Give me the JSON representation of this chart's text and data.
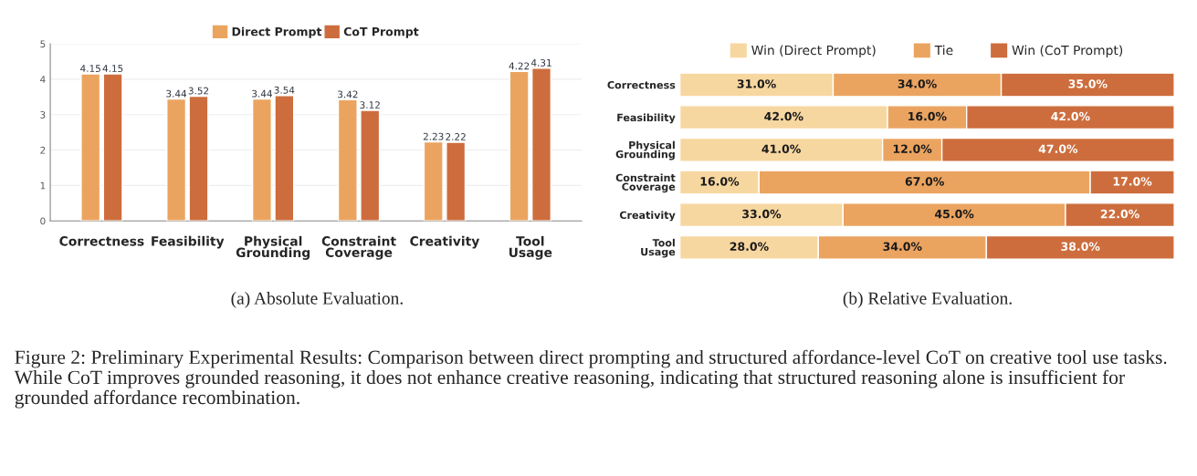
{
  "chart_data": [
    {
      "type": "bar",
      "categories": [
        "Correctness",
        "Feasibility",
        "Physical\nGrounding",
        "Constraint\nCoverage",
        "Creativity",
        "Tool\nUsage"
      ],
      "series": [
        {
          "name": "Direct Prompt",
          "color": "#eba460",
          "values": [
            4.15,
            3.44,
            3.44,
            3.42,
            2.23,
            4.22
          ]
        },
        {
          "name": "CoT Prompt",
          "color": "#cd6d3d",
          "values": [
            4.15,
            3.52,
            3.54,
            3.12,
            2.22,
            4.31
          ]
        }
      ],
      "ylim": [
        0,
        5
      ],
      "yticks": [
        0,
        1,
        2,
        3,
        4,
        5
      ],
      "grid": "y",
      "legend": "top",
      "data_labels": true,
      "annotations": [
        "(a) Absolute Evaluation."
      ]
    },
    {
      "type": "bar",
      "orientation": "horizontal",
      "stacked": true,
      "categories": [
        "Correctness",
        "Feasibility",
        "Physical\nGrounding",
        "Constraint\nCoverage",
        "Creativity",
        "Tool\nUsage"
      ],
      "series": [
        {
          "name": "Win (Direct Prompt)",
          "color": "#f7d7a0",
          "values": [
            31,
            42,
            41,
            16,
            33,
            28
          ],
          "value_labels": [
            "31.0%",
            "42.0%",
            "41.0%",
            "16.0%",
            "33.0%",
            "28.0%"
          ]
        },
        {
          "name": "Tie",
          "color": "#eba460",
          "values": [
            34,
            16,
            12,
            67,
            45,
            34
          ],
          "value_labels": [
            "34.0%",
            "16.0%",
            "12.0%",
            "67.0%",
            "45.0%",
            "34.0%"
          ]
        },
        {
          "name": "Win (CoT Prompt)",
          "color": "#cd6d3d",
          "values": [
            35,
            42,
            47,
            17,
            22,
            38
          ],
          "value_labels": [
            "35.0%",
            "42.0%",
            "47.0%",
            "17.0%",
            "22.0%",
            "38.0%"
          ]
        }
      ],
      "xlim": [
        0,
        100
      ],
      "tick_labels": "y",
      "legend": "top",
      "annotations": [
        "(b) Relative Evaluation.",
        "Figure 2: Preliminary Experimental Results: Comparison between direct prompting and structured affordance-level CoT on creative tool use tasks. While CoT improves grounded reasoning, it does not enhance creative reasoning, indicating that structured reasoning alone is insufficient for grounded affordance recombination."
      ]
    }
  ]
}
